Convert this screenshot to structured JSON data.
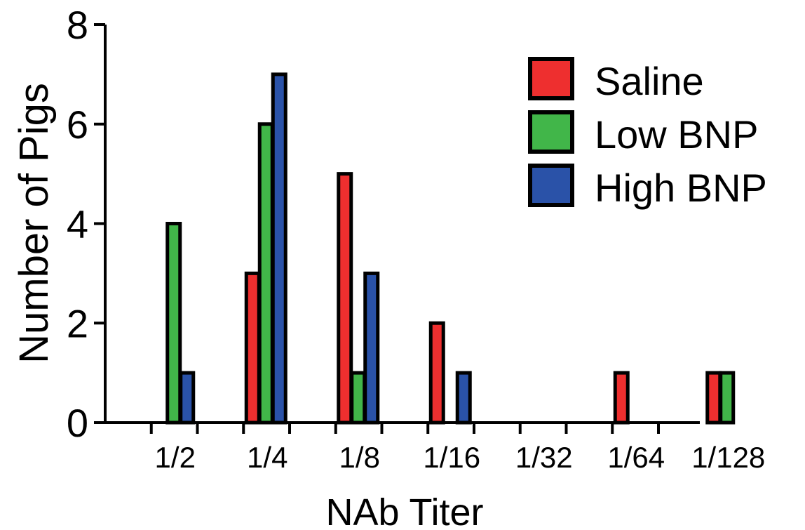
{
  "chart_data": {
    "type": "bar",
    "title": "",
    "xlabel": "NAb Titer",
    "ylabel": "Number of Pigs",
    "categories": [
      "1/2",
      "1/4",
      "1/8",
      "1/16",
      "1/32",
      "1/64",
      "1/128"
    ],
    "ylim": [
      0,
      8
    ],
    "yticks": [
      0,
      2,
      4,
      6,
      8
    ],
    "grid": false,
    "legend_position": "top-right",
    "series": [
      {
        "name": "Saline",
        "color": "#ee2f2f",
        "values": [
          0,
          3,
          5,
          2,
          0,
          1,
          1
        ]
      },
      {
        "name": "Low BNP",
        "color": "#41b649",
        "values": [
          4,
          6,
          1,
          0,
          0,
          0,
          1
        ]
      },
      {
        "name": "High BNP",
        "color": "#2a52a8",
        "values": [
          1,
          7,
          3,
          1,
          0,
          0,
          0
        ]
      }
    ]
  }
}
